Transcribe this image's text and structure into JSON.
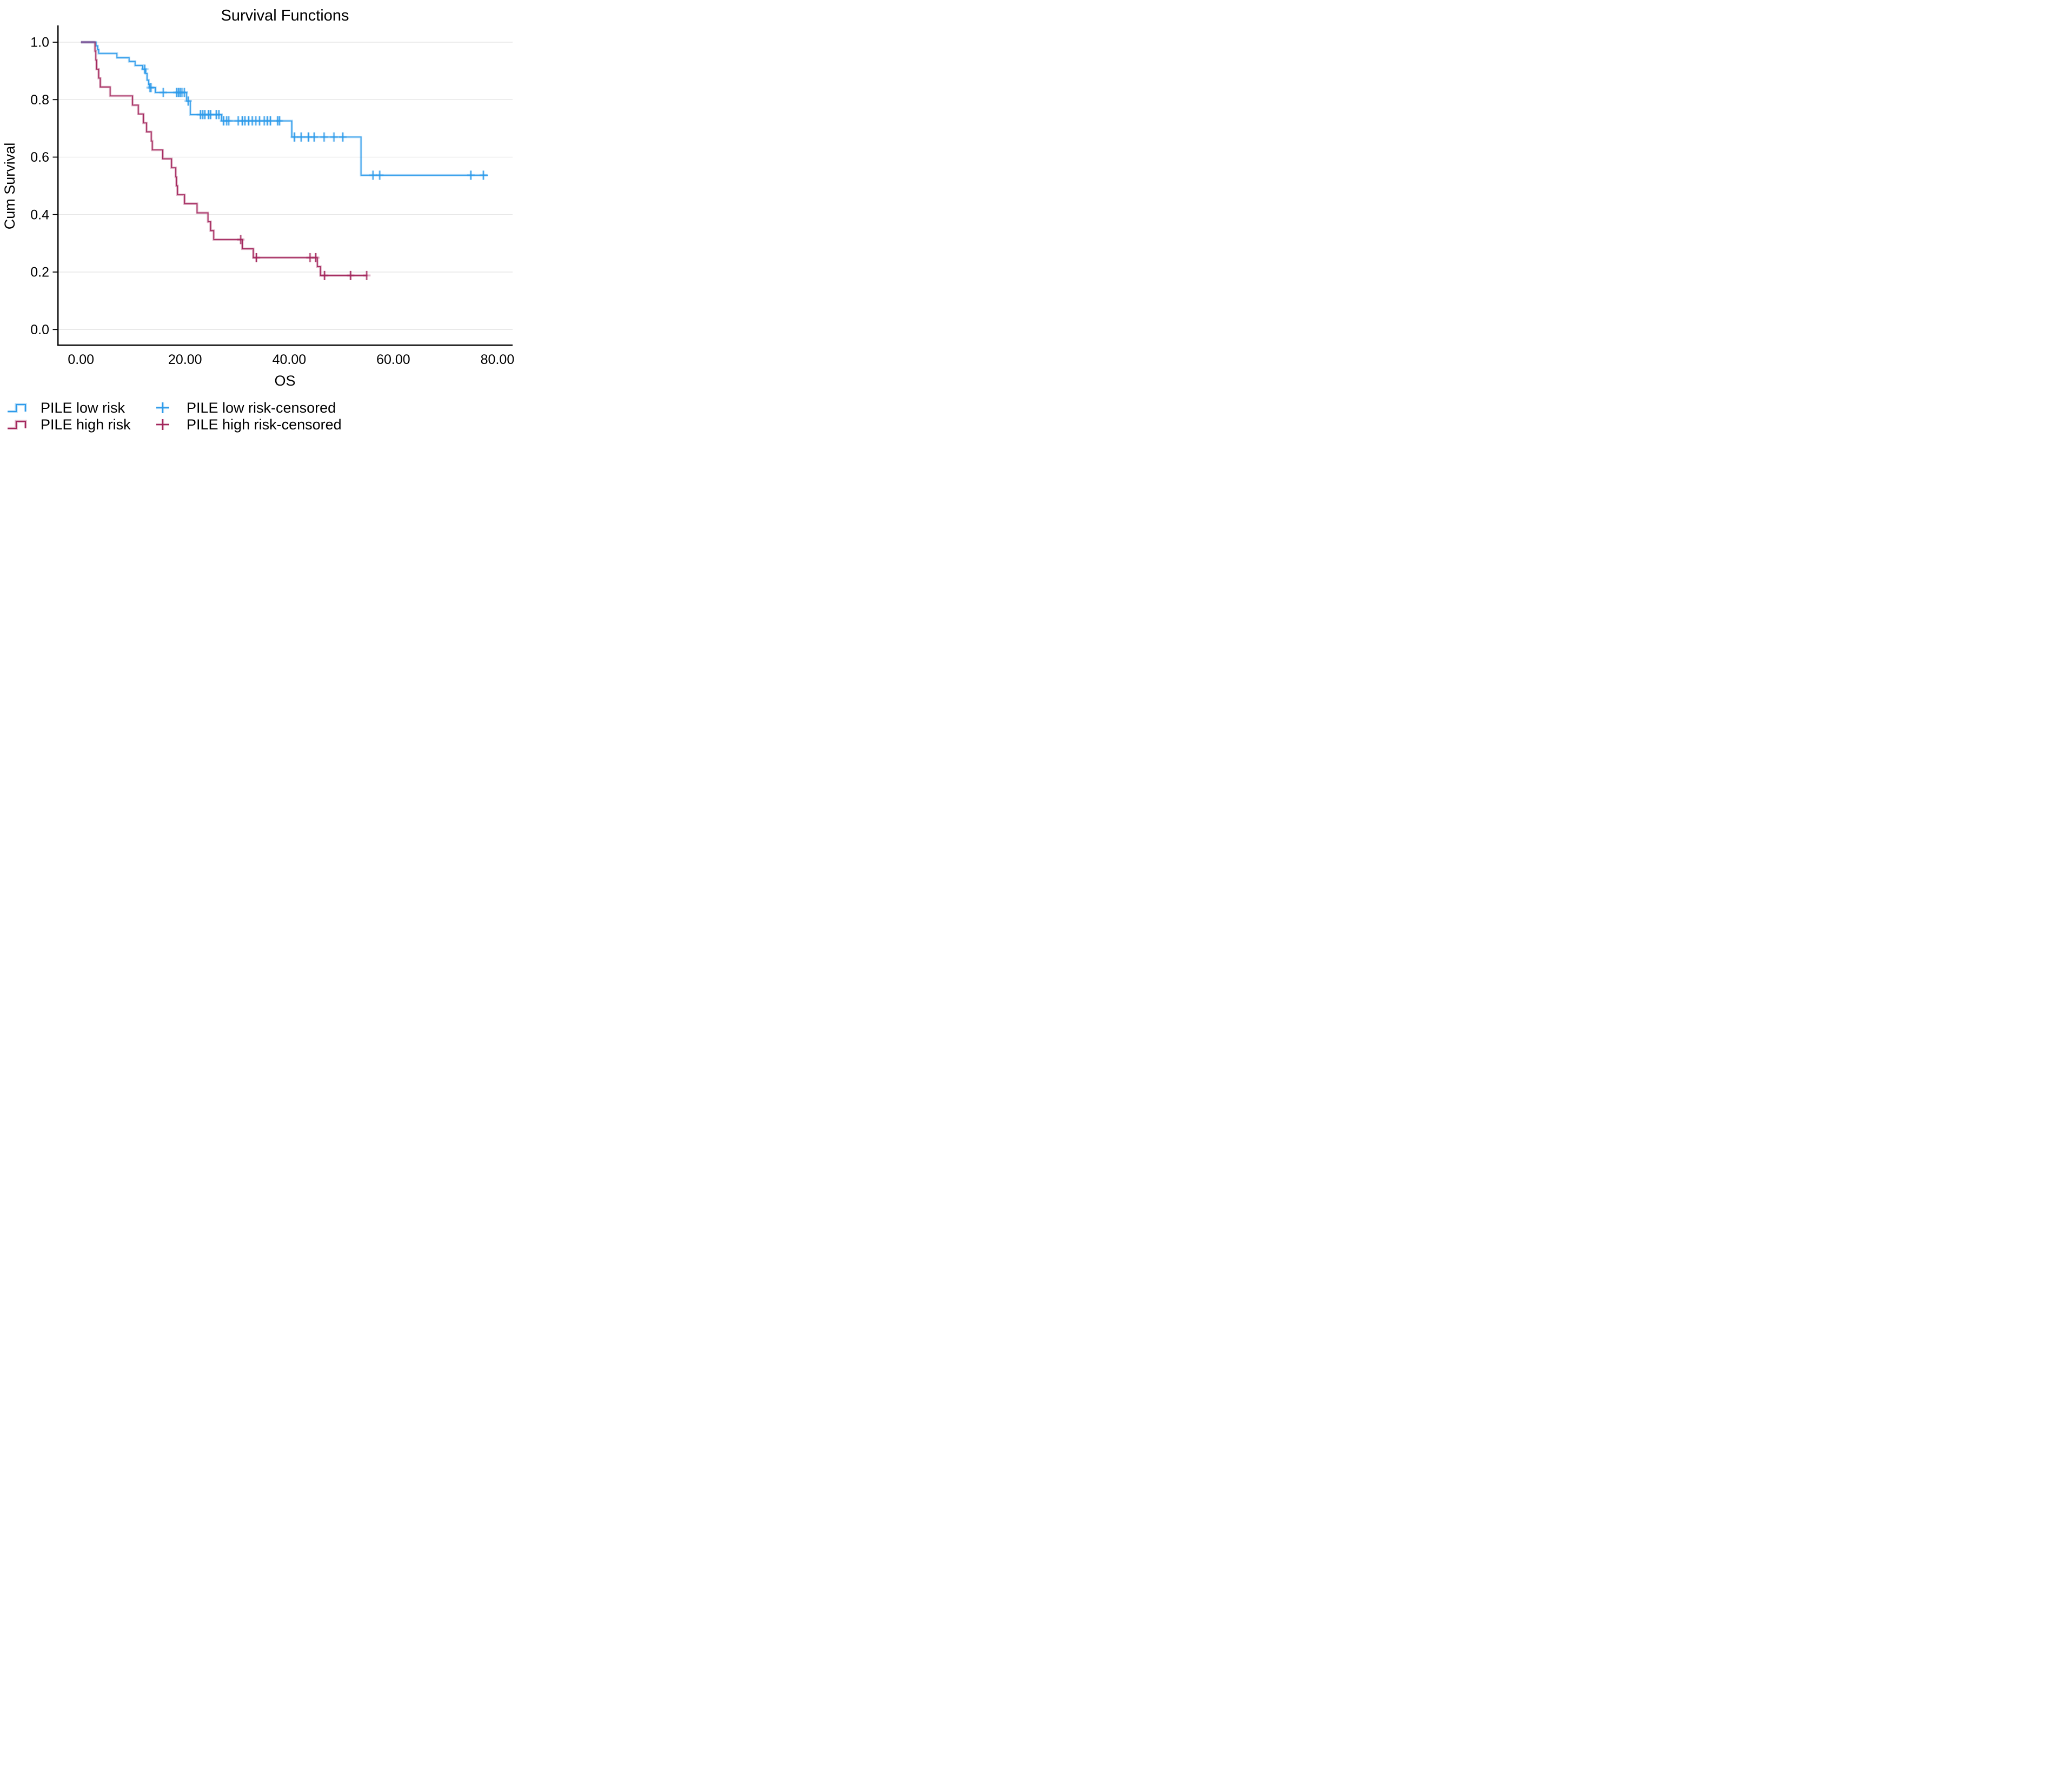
{
  "title": "Survival Functions",
  "x_axis": {
    "label": "OS",
    "tick_labels": [
      "0.00",
      "20.00",
      "40.00",
      "60.00",
      "80.00"
    ],
    "tick_values": [
      0,
      20,
      40,
      60,
      80
    ]
  },
  "y_axis": {
    "label": "Cum Survival",
    "tick_labels": [
      "1.0",
      "0.8",
      "0.6",
      "0.4",
      "0.2",
      "0.0"
    ],
    "tick_values": [
      1.0,
      0.8,
      0.6,
      0.4,
      0.2,
      0.0
    ]
  },
  "colors": {
    "low_risk": "#2E9BEA",
    "high_risk": "#A3265C",
    "overlap": "#7C5E9E",
    "gridline": "#E2E2E2",
    "axis": "#000000",
    "text": "#000000"
  },
  "legend": {
    "rows": [
      {
        "entries": [
          {
            "symbol": "step-line",
            "series": "low_risk",
            "label": "PILE low risk"
          },
          {
            "symbol": "plus",
            "series": "low_risk",
            "label": "PILE low risk-censored"
          }
        ]
      },
      {
        "entries": [
          {
            "symbol": "step-line",
            "series": "high_risk",
            "label": "PILE high risk"
          },
          {
            "symbol": "plus",
            "series": "high_risk",
            "label": "PILE high risk-censored"
          }
        ]
      }
    ]
  },
  "chart_data": {
    "type": "line",
    "subtype": "kaplan-meier-step",
    "title": "Survival Functions",
    "xlabel": "OS",
    "ylabel": "Cum Survival",
    "xlim": [
      0,
      83
    ],
    "ylim": [
      0,
      1.0
    ],
    "grid": "horizontal",
    "legend_position": "bottom-left",
    "series": [
      {
        "name": "PILE low risk",
        "color_key": "low_risk",
        "steps": [
          [
            0,
            1.0
          ],
          [
            2.9,
            0.987
          ],
          [
            3.2,
            0.974
          ],
          [
            3.4,
            0.961
          ],
          [
            6.9,
            0.946
          ],
          [
            9.25,
            0.933
          ],
          [
            10.4,
            0.919
          ],
          [
            11.85,
            0.906
          ],
          [
            12.45,
            0.891
          ],
          [
            12.7,
            0.868
          ],
          [
            13.0,
            0.853
          ],
          [
            13.1,
            0.842
          ],
          [
            14.3,
            0.825
          ],
          [
            20.3,
            0.795
          ],
          [
            21.0,
            0.748
          ],
          [
            27.0,
            0.726
          ],
          [
            40.5,
            0.67
          ],
          [
            53.8,
            0.537
          ]
        ],
        "end_x": 78.2,
        "censored": [
          [
            12.25,
            0.906
          ],
          [
            13.25,
            0.842
          ],
          [
            13.45,
            0.842
          ],
          [
            15.8,
            0.825
          ],
          [
            18.4,
            0.825
          ],
          [
            18.75,
            0.825
          ],
          [
            19.05,
            0.825
          ],
          [
            19.4,
            0.825
          ],
          [
            19.85,
            0.825
          ],
          [
            20.6,
            0.795
          ],
          [
            22.95,
            0.748
          ],
          [
            23.4,
            0.748
          ],
          [
            23.8,
            0.748
          ],
          [
            24.5,
            0.748
          ],
          [
            24.9,
            0.748
          ],
          [
            26.0,
            0.748
          ],
          [
            26.5,
            0.748
          ],
          [
            27.4,
            0.726
          ],
          [
            28.0,
            0.726
          ],
          [
            28.4,
            0.726
          ],
          [
            30.2,
            0.726
          ],
          [
            31.0,
            0.726
          ],
          [
            31.5,
            0.726
          ],
          [
            32.2,
            0.726
          ],
          [
            32.9,
            0.726
          ],
          [
            33.6,
            0.726
          ],
          [
            34.3,
            0.726
          ],
          [
            35.2,
            0.726
          ],
          [
            35.8,
            0.726
          ],
          [
            36.4,
            0.726
          ],
          [
            37.8,
            0.726
          ],
          [
            38.15,
            0.726
          ],
          [
            41.0,
            0.67
          ],
          [
            42.3,
            0.67
          ],
          [
            43.7,
            0.67
          ],
          [
            44.8,
            0.67
          ],
          [
            46.7,
            0.67
          ],
          [
            48.6,
            0.67
          ],
          [
            50.3,
            0.67
          ],
          [
            56.1,
            0.537
          ],
          [
            57.4,
            0.537
          ],
          [
            74.9,
            0.537
          ],
          [
            77.3,
            0.537
          ]
        ]
      },
      {
        "name": "PILE high risk",
        "color_key": "high_risk",
        "steps": [
          [
            0,
            1.0
          ],
          [
            2.7,
            0.969
          ],
          [
            2.85,
            0.938
          ],
          [
            3.0,
            0.906
          ],
          [
            3.4,
            0.875
          ],
          [
            3.7,
            0.844
          ],
          [
            5.6,
            0.813
          ],
          [
            9.9,
            0.781
          ],
          [
            11.0,
            0.75
          ],
          [
            12.0,
            0.719
          ],
          [
            12.6,
            0.688
          ],
          [
            13.5,
            0.656
          ],
          [
            13.7,
            0.625
          ],
          [
            15.7,
            0.594
          ],
          [
            17.4,
            0.563
          ],
          [
            18.2,
            0.531
          ],
          [
            18.35,
            0.5
          ],
          [
            18.55,
            0.469
          ],
          [
            19.9,
            0.438
          ],
          [
            22.3,
            0.406
          ],
          [
            24.4,
            0.375
          ],
          [
            24.9,
            0.344
          ],
          [
            25.5,
            0.313
          ],
          [
            31.0,
            0.281
          ],
          [
            33.1,
            0.25
          ],
          [
            45.4,
            0.219
          ],
          [
            46.0,
            0.188
          ]
        ],
        "end_x": 55.0,
        "censored": [
          [
            30.7,
            0.313
          ],
          [
            33.7,
            0.25
          ],
          [
            44.0,
            0.25
          ],
          [
            45.1,
            0.25
          ],
          [
            46.8,
            0.188
          ],
          [
            51.8,
            0.188
          ],
          [
            54.9,
            0.188
          ]
        ]
      }
    ],
    "overlap_segment": {
      "x_start": 0,
      "x_end": 2.65,
      "y": 1.0,
      "color_key": "overlap"
    }
  }
}
